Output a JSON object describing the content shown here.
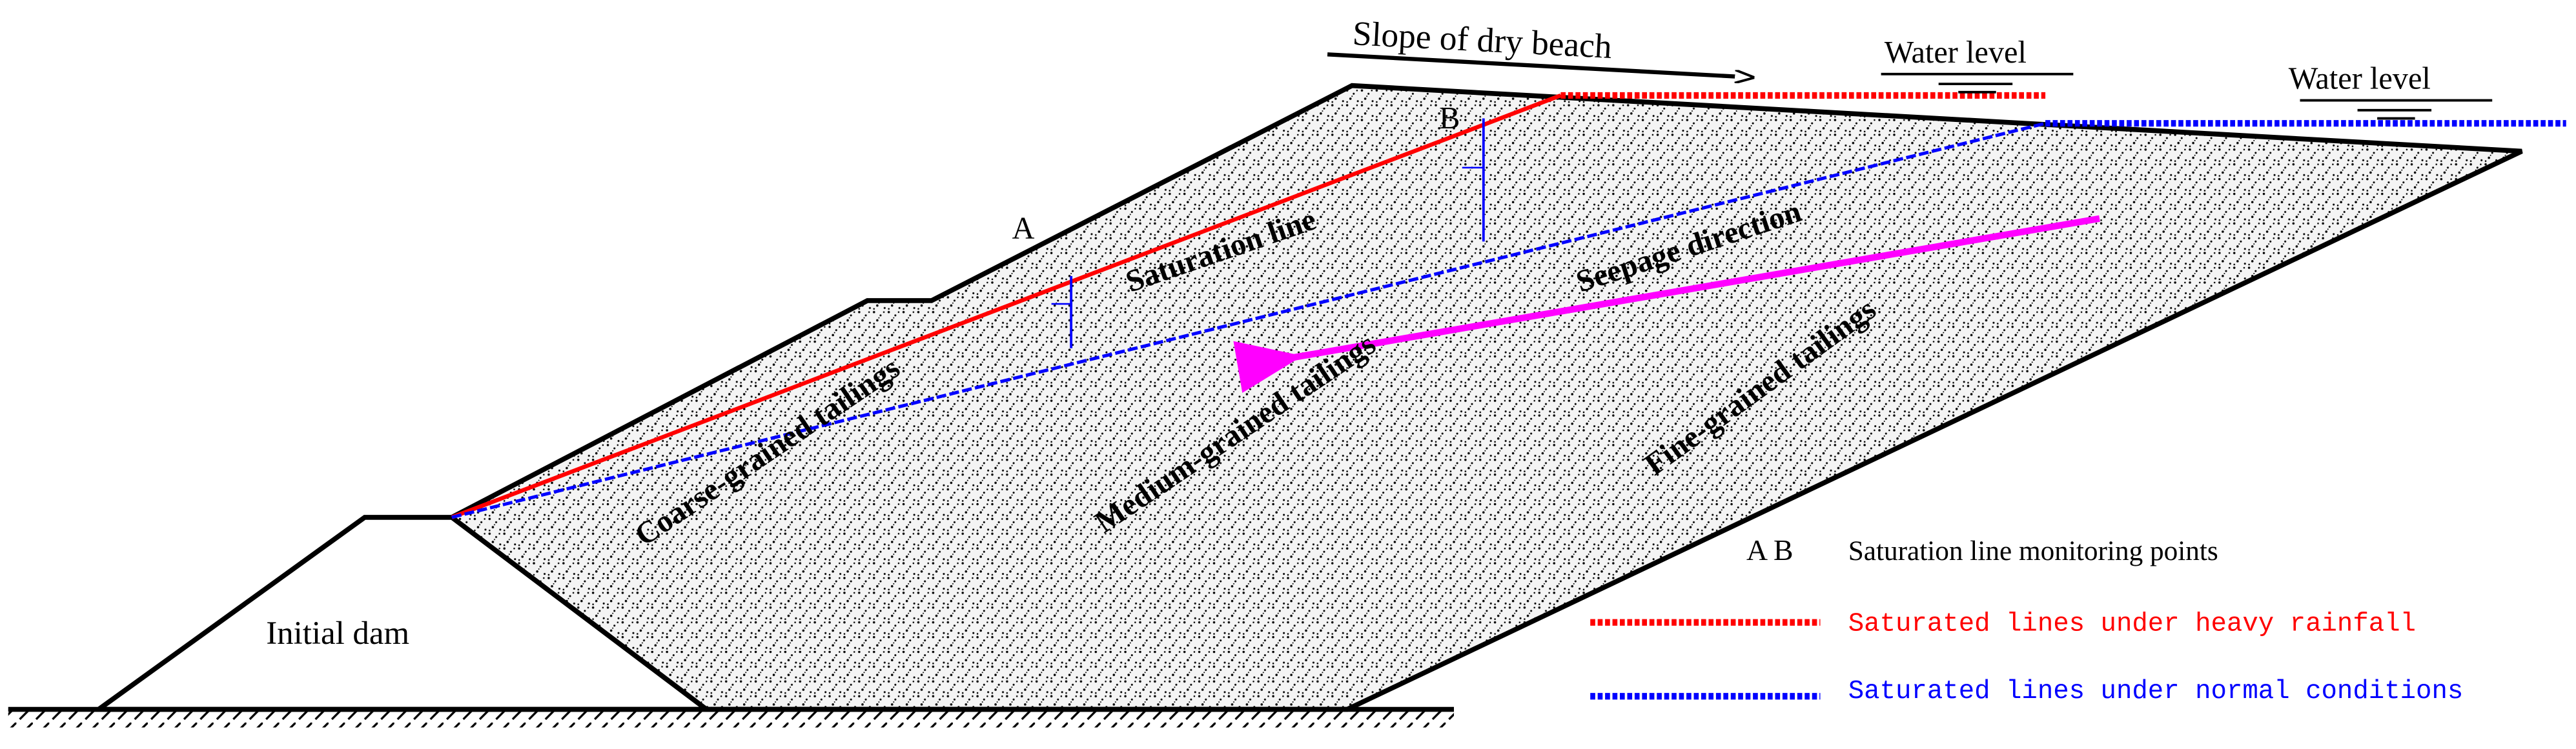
{
  "labels": {
    "slope_of_dry_beach": "Slope of dry beach",
    "water_level_1": "Water level",
    "water_level_2": "Water level",
    "point_a": "A",
    "point_b": "B",
    "saturation_line": "Saturation line",
    "seepage_direction": "Seepage direction",
    "coarse": "Coarse-grained tailings",
    "medium": "Medium-grained tailings",
    "fine": "Fine-grained tailings",
    "initial_dam": "Initial dam"
  },
  "legend": {
    "points_marker": "A  B",
    "points_text": "Saturation line monitoring points",
    "rainfall_text": "Saturated lines under heavy rainfall",
    "normal_text": "Saturated lines under  normal conditions"
  }
}
